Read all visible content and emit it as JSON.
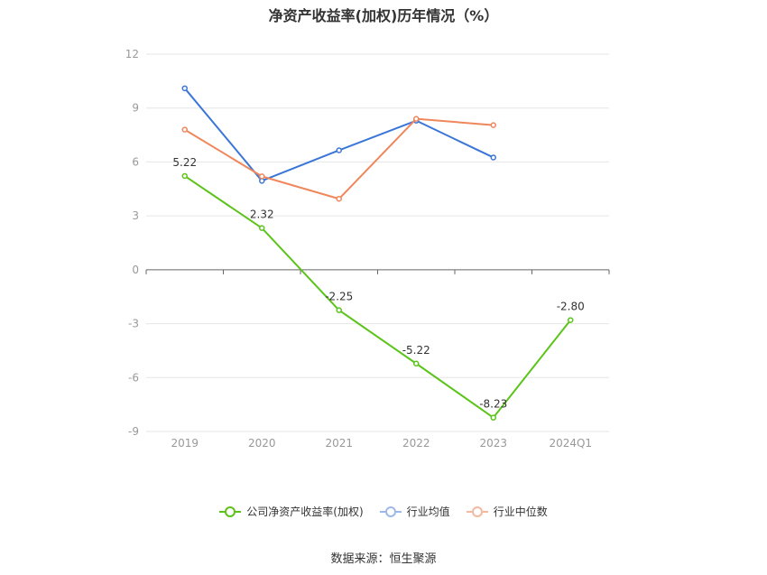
{
  "chart_data": {
    "type": "line",
    "title": "净资产收益率(加权)历年情况（%）",
    "categories": [
      "2019",
      "2020",
      "2021",
      "2022",
      "2023",
      "2024Q1"
    ],
    "ylim": [
      -9,
      12
    ],
    "yticks": [
      12,
      9,
      6,
      3,
      0,
      -3,
      -6,
      -9
    ],
    "grid": true,
    "legend_position": "bottom",
    "series": [
      {
        "name": "公司净资产收益率(加权)",
        "color": "#5bc41a",
        "values": [
          5.22,
          2.32,
          -2.25,
          -5.22,
          -8.23,
          -2.8
        ],
        "labels": [
          "5.22",
          "2.32",
          "-2.25",
          "-5.22",
          "-8.23",
          "-2.80"
        ]
      },
      {
        "name": "行业均值",
        "color": "#3a76d8",
        "values": [
          10.1,
          4.95,
          6.65,
          8.3,
          6.25,
          null
        ]
      },
      {
        "name": "行业中位数",
        "color": "#f0875c",
        "values": [
          7.8,
          5.2,
          3.95,
          8.4,
          8.05,
          null
        ]
      }
    ]
  },
  "source_text": "数据来源：恒生聚源"
}
